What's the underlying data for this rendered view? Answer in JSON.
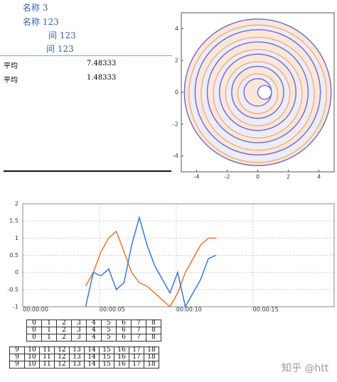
{
  "info_panel": {
    "items": [
      "名称 3",
      "名称 123",
      "间 123",
      "间 123"
    ],
    "rows": [
      {
        "label": "平均",
        "value": "7.48333"
      },
      {
        "label": "平均",
        "value": "1.48333"
      }
    ]
  },
  "chart_data": [
    {
      "type": "spiral",
      "xlim": [
        -5,
        5
      ],
      "ylim": [
        -5,
        5
      ],
      "xticks": [
        -4,
        -2,
        0,
        2,
        4
      ],
      "yticks": [
        -4,
        -2,
        0,
        2,
        4
      ],
      "colors": [
        "#6a6acf",
        "#f0b070"
      ]
    },
    {
      "type": "line",
      "xlim": [
        0,
        20.3
      ],
      "ylim": [
        -1,
        2
      ],
      "xticks": [
        {
          "value": 0,
          "label": "00:00:00"
        },
        {
          "value": 5,
          "label": "00:00:05"
        },
        {
          "value": 10,
          "label": "00:00:10"
        },
        {
          "value": 15,
          "label": "00:00:15"
        }
      ],
      "yticks": [
        -1,
        -0.5,
        0,
        0.5,
        1,
        1.5,
        2
      ],
      "grid": true,
      "x": [
        4.1,
        4.6,
        5.1,
        5.6,
        6.1,
        6.6,
        7.1,
        7.6,
        8.1,
        8.6,
        9.1,
        9.6,
        10.1,
        10.6,
        11.1,
        11.6,
        12.1,
        12.6
      ],
      "series": [
        {
          "color": "#e8733a",
          "values": [
            -0.4,
            0.0,
            0.6,
            1.0,
            1.2,
            0.6,
            0.0,
            -0.3,
            -0.4,
            -0.6,
            -0.8,
            -1.0,
            -0.6,
            0.0,
            0.4,
            0.8,
            1.0,
            1.0
          ]
        },
        {
          "color": "#3a78d8",
          "values": [
            -1.0,
            0.0,
            -0.1,
            0.1,
            -0.5,
            -0.3,
            0.8,
            1.6,
            0.8,
            0.2,
            -0.2,
            -0.6,
            0.0,
            -1.0,
            -0.6,
            -0.2,
            0.4,
            0.5
          ]
        }
      ]
    }
  ],
  "tables": [
    {
      "rows": [
        [
          0,
          1,
          2,
          3,
          4,
          5,
          6,
          7,
          8
        ],
        [
          0,
          1,
          2,
          3,
          4,
          5,
          6,
          7,
          8
        ],
        [
          0,
          1,
          2,
          3,
          4,
          5,
          6,
          7,
          8
        ]
      ]
    },
    {
      "rows": [
        [
          9,
          10,
          11,
          12,
          13,
          14,
          15,
          16,
          17,
          18
        ],
        [
          9,
          10,
          11,
          12,
          13,
          14,
          15,
          16,
          17,
          18
        ],
        [
          9,
          10,
          11,
          12,
          13,
          14,
          15,
          16,
          17,
          18
        ]
      ]
    }
  ],
  "watermark": "知乎 @htt"
}
